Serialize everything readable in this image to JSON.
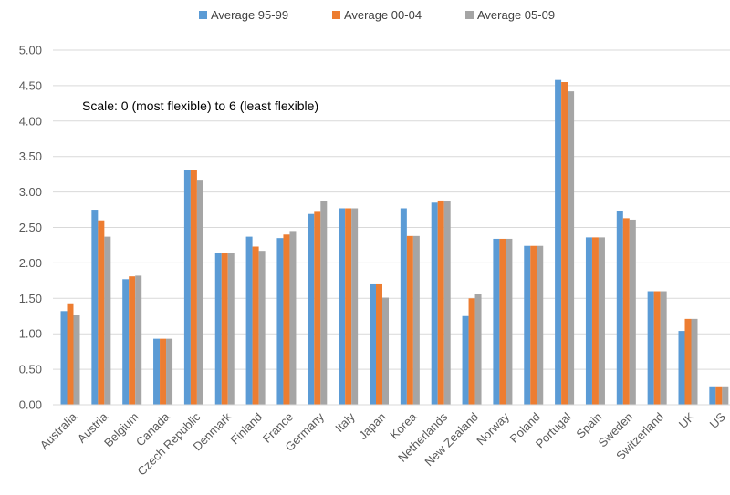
{
  "chart_data": {
    "type": "bar",
    "title": "",
    "xlabel": "",
    "ylabel": "",
    "ylim": [
      0,
      5
    ],
    "yticks": [
      "0.00",
      "0.50",
      "1.00",
      "1.50",
      "2.00",
      "2.50",
      "3.00",
      "3.50",
      "4.00",
      "4.50",
      "5.00"
    ],
    "grid": true,
    "legend_position": "top",
    "annotation": "Scale: 0 (most flexible) to 6 (least flexible)",
    "categories": [
      "Australia",
      "Austria",
      "Belgium",
      "Canada",
      "Czech Republic",
      "Denmark",
      "Finland",
      "France",
      "Germany",
      "Italy",
      "Japan",
      "Korea",
      "Netherlands",
      "New Zealand",
      "Norway",
      "Poland",
      "Portugal",
      "Spain",
      "Sweden",
      "Switzerland",
      "UK",
      "US"
    ],
    "series": [
      {
        "name": "Average 95-99",
        "color": "#5B9BD5",
        "values": [
          1.32,
          2.75,
          1.77,
          0.93,
          3.31,
          2.14,
          2.37,
          2.35,
          2.69,
          2.77,
          1.71,
          2.77,
          2.85,
          1.25,
          2.34,
          2.24,
          4.58,
          2.36,
          2.73,
          1.6,
          1.04,
          0.26
        ]
      },
      {
        "name": "Average 00-04",
        "color": "#ED7D31",
        "values": [
          1.43,
          2.6,
          1.81,
          0.93,
          3.31,
          2.14,
          2.23,
          2.4,
          2.72,
          2.77,
          1.71,
          2.38,
          2.88,
          1.5,
          2.34,
          2.24,
          4.55,
          2.36,
          2.63,
          1.6,
          1.21,
          0.26
        ]
      },
      {
        "name": "Average 05-09",
        "color": "#A5A5A5",
        "values": [
          1.27,
          2.37,
          1.82,
          0.93,
          3.16,
          2.14,
          2.17,
          2.45,
          2.87,
          2.77,
          1.51,
          2.38,
          2.87,
          1.56,
          2.34,
          2.24,
          4.42,
          2.36,
          2.61,
          1.6,
          1.21,
          0.26
        ]
      }
    ]
  }
}
